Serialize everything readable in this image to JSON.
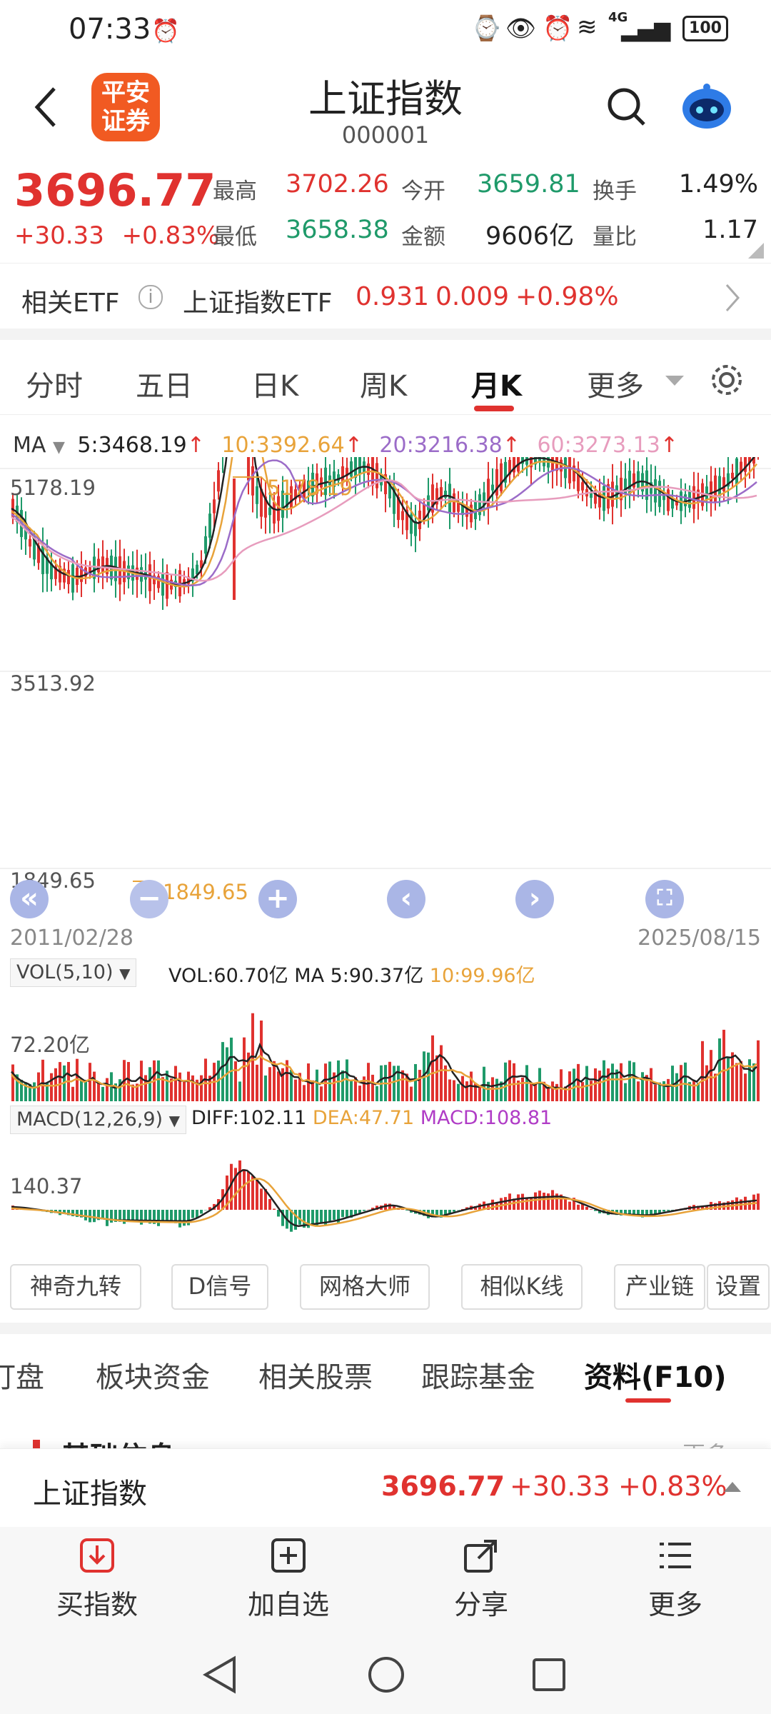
{
  "status_bar": {
    "time": "07:33",
    "signal_label": "4G",
    "battery": "100"
  },
  "header": {
    "logo_line1": "平安",
    "logo_line2": "证券",
    "title": "上证指数",
    "code": "000001"
  },
  "quote": {
    "price": "3696.77",
    "change": "+30.33",
    "change_pct": "+0.83%",
    "high_label": "最高",
    "high": "3702.26",
    "open_label": "今开",
    "open": "3659.81",
    "turnover_label": "换手",
    "turnover": "1.49%",
    "low_label": "最低",
    "low": "3658.38",
    "amount_label": "金额",
    "amount": "9606亿",
    "vol_ratio_label": "量比",
    "vol_ratio": "1.17"
  },
  "etf": {
    "label": "相关ETF",
    "name": "上证指数ETF",
    "price": "0.931",
    "change": "0.009",
    "change_pct": "+0.98%"
  },
  "tabs": [
    "分时",
    "五日",
    "日K",
    "周K",
    "月K",
    "更多"
  ],
  "active_tab": "月K",
  "ma_legend": {
    "label": "MA",
    "ma5": "5:3468.19",
    "ma10": "10:3392.64",
    "ma20": "20:3216.38",
    "ma60": "60:3273.13",
    "arrow": "↑"
  },
  "price_axis": {
    "top": "5178.19",
    "mid": "3513.92",
    "bottom": "1849.65"
  },
  "max_marker": "5178.19",
  "min_marker": "1849.65",
  "date_start": "2011/02/28",
  "date_end": "2025/08/15",
  "vol_legend": {
    "label": "VOL(5,10)",
    "vol": "VOL:60.70亿",
    "ma5": "MA 5:90.37亿",
    "ma10": "10:99.96亿",
    "axis": "72.20亿"
  },
  "macd_legend": {
    "label": "MACD(12,26,9)",
    "diff": "DIFF:102.11",
    "dea": "DEA:47.71",
    "macd": "MACD:108.81",
    "axis": "140.37"
  },
  "tools": [
    "神奇九转",
    "D信号",
    "网格大师",
    "相似K线",
    "产业链",
    "设置"
  ],
  "bottom_tabs": [
    "盯盘",
    "板块资金",
    "相关股票",
    "跟踪基金",
    "资料(F10)"
  ],
  "bottom_active": "资料(F10)",
  "partial_section_title": "基础信息",
  "partial_more": "更多",
  "bottom_quote": {
    "name": "上证指数",
    "price": "3696.77",
    "change": "+30.33",
    "change_pct": "+0.83%"
  },
  "actions": [
    "买指数",
    "加自选",
    "分享",
    "更多"
  ],
  "colors": {
    "red": "#e0322f",
    "green": "#1f9a6a",
    "ma5": "#222222",
    "ma10": "#e8a33a",
    "ma20": "#9b6cc8",
    "ma60": "#e79cbd"
  }
}
